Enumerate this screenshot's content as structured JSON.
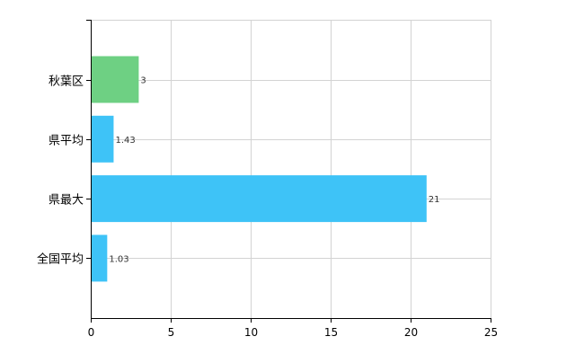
{
  "chart_data": {
    "type": "bar",
    "orientation": "horizontal",
    "categories": [
      "秋葉区",
      "県平均",
      "県最大",
      "全国平均"
    ],
    "values": [
      3,
      1.43,
      21,
      1.03
    ],
    "value_labels": [
      "3",
      "1.43",
      "21",
      "1.03"
    ],
    "bar_colors": [
      "#6ed083",
      "#3ec3f7",
      "#3ec3f7",
      "#3ec3f7"
    ],
    "xlim": [
      0,
      25
    ],
    "x_ticks": [
      0,
      5,
      10,
      15,
      20,
      25
    ],
    "x_tick_labels": [
      "0",
      "5",
      "10",
      "15",
      "20",
      "25"
    ],
    "grid": true,
    "grid_color": "#d3d3d3",
    "axis_color": "#000000",
    "title": "",
    "xlabel": "",
    "ylabel": ""
  }
}
